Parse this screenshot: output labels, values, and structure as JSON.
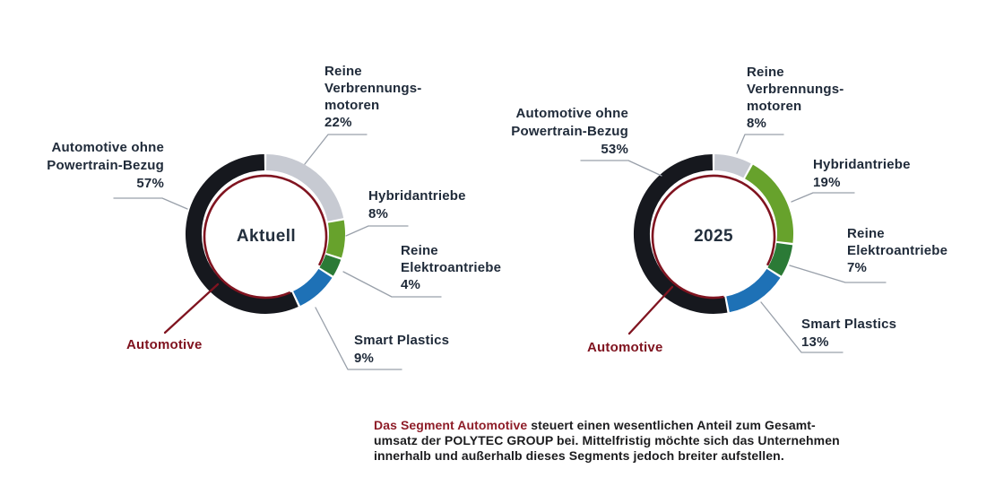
{
  "colors": {
    "segment_black": "#16181e",
    "segment_gray": "#c7cad2",
    "segment_light_green": "#67a22c",
    "segment_dark_green": "#2b7a36",
    "segment_blue": "#1e71b6",
    "automotive_red": "#801420",
    "highlight_red": "#8e1d28",
    "text_navy": "#202b3a",
    "caption_text": "#1c1c1e",
    "leader_gray": "#99a0aa",
    "background": "#ffffff"
  },
  "chart_data": [
    {
      "type": "donut",
      "center_label": "Aktuell",
      "unit": "%",
      "segments": [
        {
          "name": "Reine Verbrennungsmotoren",
          "value": 22,
          "pct_label": "22%",
          "color_key": "segment_gray",
          "callout_lines": [
            "Reine",
            "Verbrennungs-",
            "motoren"
          ]
        },
        {
          "name": "Hybridantriebe",
          "value": 8,
          "pct_label": "8%",
          "color_key": "segment_light_green",
          "callout_lines": [
            "Hybridantriebe"
          ]
        },
        {
          "name": "Reine Elektroantriebe",
          "value": 4,
          "pct_label": "4%",
          "color_key": "segment_dark_green",
          "callout_lines": [
            "Reine",
            "Elektroantriebe"
          ]
        },
        {
          "name": "Smart Plastics",
          "value": 9,
          "pct_label": "9%",
          "color_key": "segment_blue",
          "callout_lines": [
            "Smart Plastics"
          ]
        },
        {
          "name": "Automotive ohne Powertrain-Bezug",
          "value": 57,
          "pct_label": "57%",
          "color_key": "segment_black",
          "callout_lines": [
            "Automotive ohne",
            "Powertrain-Bezug"
          ]
        }
      ],
      "overlay_label": "Automotive",
      "overlay_covers": "all segments except Smart Plastics"
    },
    {
      "type": "donut",
      "center_label": "2025",
      "unit": "%",
      "segments": [
        {
          "name": "Reine Verbrennungsmotoren",
          "value": 8,
          "pct_label": "8%",
          "color_key": "segment_gray",
          "callout_lines": [
            "Reine",
            "Verbrennungs-",
            "motoren"
          ]
        },
        {
          "name": "Hybridantriebe",
          "value": 19,
          "pct_label": "19%",
          "color_key": "segment_light_green",
          "callout_lines": [
            "Hybridantriebe"
          ]
        },
        {
          "name": "Reine Elektroantriebe",
          "value": 7,
          "pct_label": "7%",
          "color_key": "segment_dark_green",
          "callout_lines": [
            "Reine",
            "Elektroantriebe"
          ]
        },
        {
          "name": "Smart Plastics",
          "value": 13,
          "pct_label": "13%",
          "color_key": "segment_blue",
          "callout_lines": [
            "Smart Plastics"
          ]
        },
        {
          "name": "Automotive ohne Powertrain-Bezug",
          "value": 53,
          "pct_label": "53%",
          "color_key": "segment_black",
          "callout_lines": [
            "Automotive ohne",
            "Powertrain-Bezug"
          ]
        }
      ],
      "overlay_label": "Automotive",
      "overlay_covers": "all segments except Smart Plastics"
    }
  ],
  "caption": {
    "highlight": "Das Segment Automotive",
    "line1_rest": " steuert einen wesentlichen Anteil zum Gesamt-",
    "line2": "umsatz der POLYTEC GROUP bei. Mittelfristig möchte sich das Unternehmen",
    "line3": "innerhalb und außerhalb dieses Segments jedoch breiter aufstellen."
  }
}
